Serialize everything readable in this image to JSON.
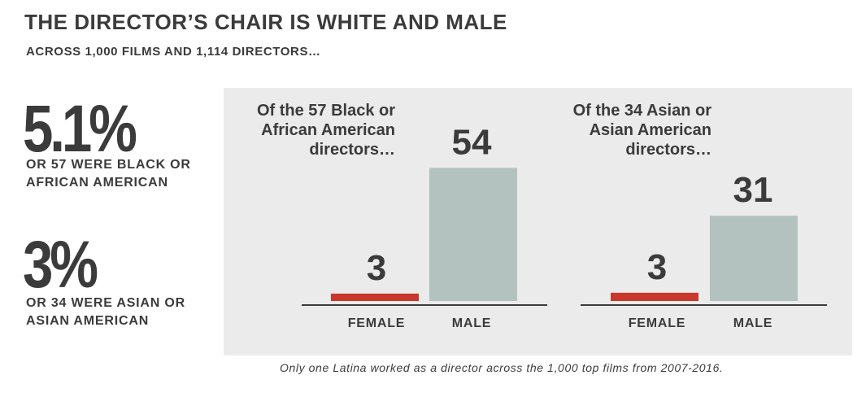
{
  "title": "THE DIRECTOR’S CHAIR IS WHITE AND MALE",
  "subtitle": "ACROSS 1,000 FILMS AND 1,114 DIRECTORS…",
  "stats": [
    {
      "big": "5.1%",
      "desc": "OR 57 WERE BLACK OR AFRICAN AMERICAN"
    },
    {
      "big": "3%",
      "desc": "OR 34 WERE ASIAN  OR ASIAN AMERICAN"
    }
  ],
  "caption": "Only one Latina worked as a director across the 1,000 top films from 2007-2016.",
  "colors": {
    "female": "#c8382b",
    "male": "#b4c2bf",
    "panel": "#ebebeb",
    "text": "#3b3b3b"
  },
  "chart_data": [
    {
      "type": "bar",
      "title_lines": [
        "Of the 57 Black or",
        "African American",
        "directors…"
      ],
      "categories": [
        "FEMALE",
        "MALE"
      ],
      "values": [
        3,
        54
      ]
    },
    {
      "type": "bar",
      "title_lines": [
        "Of the 34 Asian or",
        "Asian American",
        "directors…"
      ],
      "categories": [
        "FEMALE",
        "MALE"
      ],
      "values": [
        3,
        31
      ]
    }
  ]
}
